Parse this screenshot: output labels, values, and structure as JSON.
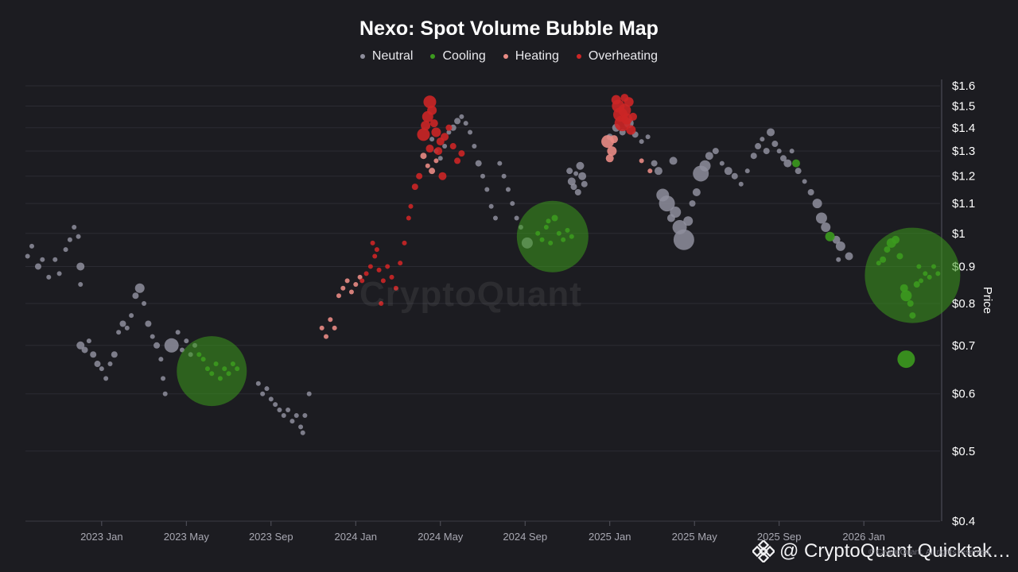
{
  "chart_data": {
    "type": "scatter",
    "title": "Nexo: Spot Volume Bubble Map",
    "y_scale": "log",
    "ylim": [
      0.4,
      1.6
    ],
    "y_ticks": [
      "$1.6",
      "$1.5",
      "$1.4",
      "$1.3",
      "$1.2",
      "$1.1",
      "$1",
      "$0.9",
      "$0.8",
      "$0.7",
      "$0.6",
      "$0.5",
      "$0.4"
    ],
    "y_tick_values": [
      1.6,
      1.5,
      1.4,
      1.3,
      1.2,
      1.1,
      1.0,
      0.9,
      0.8,
      0.7,
      0.6,
      0.5,
      0.4
    ],
    "ylabel": "Price",
    "x_ticks": [
      "2023 Jan",
      "2023 May",
      "2023 Sep",
      "2024 Jan",
      "2024 May",
      "2024 Sep",
      "2025 Jan",
      "2025 May",
      "2025 Sep",
      "2026 Jan"
    ],
    "x_tick_values": [
      0,
      4,
      8,
      12,
      16,
      20,
      24,
      28,
      32,
      36
    ],
    "xlim": [
      -3.6,
      39.6
    ],
    "legend": [
      {
        "name": "Neutral",
        "color": "#8e8e9c"
      },
      {
        "name": "Cooling",
        "color": "#3c9a1e"
      },
      {
        "name": "Heating",
        "color": "#e98b84"
      },
      {
        "name": "Overheating",
        "color": "#cc2626"
      }
    ],
    "series": [
      {
        "name": "Neutral",
        "points": [
          [
            -3.5,
            0.93,
            3
          ],
          [
            -3.3,
            0.96,
            3
          ],
          [
            -3.0,
            0.9,
            4
          ],
          [
            -2.8,
            0.92,
            3
          ],
          [
            -2.5,
            0.87,
            3
          ],
          [
            -2.2,
            0.92,
            3
          ],
          [
            -2.0,
            0.88,
            3
          ],
          [
            -1.7,
            0.95,
            3
          ],
          [
            -1.5,
            0.98,
            3
          ],
          [
            -1.3,
            1.02,
            3
          ],
          [
            -1.1,
            0.99,
            3
          ],
          [
            -1.0,
            0.9,
            5
          ],
          [
            -1.0,
            0.85,
            3
          ],
          [
            -1.0,
            0.7,
            5
          ],
          [
            -0.8,
            0.69,
            4
          ],
          [
            -0.6,
            0.71,
            3
          ],
          [
            -0.4,
            0.68,
            4
          ],
          [
            -0.2,
            0.66,
            4
          ],
          [
            0.0,
            0.65,
            3
          ],
          [
            0.2,
            0.63,
            3
          ],
          [
            0.4,
            0.66,
            3
          ],
          [
            0.6,
            0.68,
            4
          ],
          [
            0.8,
            0.73,
            3
          ],
          [
            1.0,
            0.75,
            4
          ],
          [
            1.2,
            0.74,
            3
          ],
          [
            1.4,
            0.77,
            3
          ],
          [
            1.6,
            0.82,
            4
          ],
          [
            1.8,
            0.84,
            6
          ],
          [
            2.0,
            0.8,
            3
          ],
          [
            2.2,
            0.75,
            4
          ],
          [
            2.4,
            0.72,
            3
          ],
          [
            2.6,
            0.7,
            4
          ],
          [
            2.8,
            0.67,
            3
          ],
          [
            2.9,
            0.63,
            3
          ],
          [
            3.0,
            0.6,
            3
          ],
          [
            3.3,
            0.7,
            9
          ],
          [
            3.6,
            0.73,
            3
          ],
          [
            3.8,
            0.69,
            3
          ],
          [
            4.0,
            0.71,
            3
          ],
          [
            4.2,
            0.68,
            3
          ],
          [
            4.4,
            0.7,
            3
          ],
          [
            7.4,
            0.62,
            3
          ],
          [
            7.6,
            0.6,
            3
          ],
          [
            7.8,
            0.61,
            3
          ],
          [
            8.0,
            0.59,
            3
          ],
          [
            8.2,
            0.58,
            3
          ],
          [
            8.4,
            0.57,
            3
          ],
          [
            8.6,
            0.56,
            3
          ],
          [
            8.8,
            0.57,
            3
          ],
          [
            9.0,
            0.55,
            3
          ],
          [
            9.2,
            0.56,
            3
          ],
          [
            9.4,
            0.54,
            3
          ],
          [
            9.5,
            0.53,
            3
          ],
          [
            9.6,
            0.56,
            3
          ],
          [
            9.8,
            0.6,
            3
          ],
          [
            15.6,
            1.35,
            3
          ],
          [
            15.8,
            1.3,
            3
          ],
          [
            16.0,
            1.27,
            3
          ],
          [
            16.2,
            1.32,
            3
          ],
          [
            16.4,
            1.38,
            3
          ],
          [
            16.6,
            1.4,
            4
          ],
          [
            16.8,
            1.43,
            4
          ],
          [
            17.0,
            1.45,
            3
          ],
          [
            17.2,
            1.42,
            3
          ],
          [
            17.4,
            1.38,
            3
          ],
          [
            17.6,
            1.32,
            3
          ],
          [
            17.8,
            1.25,
            4
          ],
          [
            18.0,
            1.2,
            3
          ],
          [
            18.2,
            1.15,
            3
          ],
          [
            18.4,
            1.09,
            3
          ],
          [
            18.6,
            1.05,
            3
          ],
          [
            18.8,
            1.25,
            3
          ],
          [
            19.0,
            1.2,
            3
          ],
          [
            19.2,
            1.15,
            3
          ],
          [
            19.4,
            1.1,
            3
          ],
          [
            19.6,
            1.05,
            3
          ],
          [
            19.8,
            1.02,
            3
          ],
          [
            20.1,
            0.97,
            7
          ],
          [
            22.1,
            1.22,
            4
          ],
          [
            22.2,
            1.18,
            5
          ],
          [
            22.3,
            1.16,
            4
          ],
          [
            22.4,
            1.21,
            3
          ],
          [
            22.5,
            1.14,
            4
          ],
          [
            22.6,
            1.24,
            5
          ],
          [
            22.7,
            1.2,
            5
          ],
          [
            22.8,
            1.17,
            4
          ],
          [
            24.0,
            1.36,
            4
          ],
          [
            24.3,
            1.4,
            5
          ],
          [
            24.6,
            1.38,
            4
          ],
          [
            24.9,
            1.42,
            6
          ],
          [
            25.2,
            1.37,
            4
          ],
          [
            25.5,
            1.34,
            3
          ],
          [
            25.8,
            1.36,
            3
          ],
          [
            26.1,
            1.25,
            4
          ],
          [
            26.3,
            1.22,
            5
          ],
          [
            26.5,
            1.13,
            8
          ],
          [
            26.7,
            1.1,
            10
          ],
          [
            26.9,
            1.05,
            5
          ],
          [
            27.1,
            1.07,
            7
          ],
          [
            27.3,
            1.02,
            9
          ],
          [
            27.5,
            0.98,
            13
          ],
          [
            27.7,
            1.04,
            6
          ],
          [
            27.9,
            1.1,
            4
          ],
          [
            28.1,
            1.14,
            5
          ],
          [
            28.3,
            1.21,
            10
          ],
          [
            28.5,
            1.24,
            7
          ],
          [
            28.7,
            1.28,
            5
          ],
          [
            29.0,
            1.3,
            4
          ],
          [
            29.3,
            1.25,
            3
          ],
          [
            29.6,
            1.22,
            5
          ],
          [
            29.9,
            1.2,
            4
          ],
          [
            30.2,
            1.17,
            3
          ],
          [
            30.5,
            1.22,
            3
          ],
          [
            30.8,
            1.28,
            4
          ],
          [
            31.0,
            1.32,
            4
          ],
          [
            31.2,
            1.35,
            3
          ],
          [
            31.4,
            1.3,
            4
          ],
          [
            31.6,
            1.38,
            5
          ],
          [
            31.8,
            1.33,
            4
          ],
          [
            32.0,
            1.3,
            3
          ],
          [
            32.2,
            1.27,
            4
          ],
          [
            32.4,
            1.25,
            5
          ],
          [
            32.6,
            1.3,
            3
          ],
          [
            32.9,
            1.22,
            4
          ],
          [
            33.2,
            1.18,
            3
          ],
          [
            33.5,
            1.14,
            4
          ],
          [
            33.8,
            1.1,
            6
          ],
          [
            34.0,
            1.05,
            7
          ],
          [
            34.2,
            1.02,
            6
          ],
          [
            34.7,
            0.98,
            5
          ],
          [
            34.9,
            0.96,
            6
          ],
          [
            34.8,
            0.92,
            3
          ],
          [
            35.3,
            0.93,
            5
          ],
          [
            27.0,
            1.26,
            5
          ]
        ]
      },
      {
        "name": "Cooling",
        "points": [
          [
            5.2,
            0.645,
            44
          ],
          [
            4.6,
            0.68,
            3
          ],
          [
            4.8,
            0.67,
            3
          ],
          [
            5.0,
            0.65,
            3
          ],
          [
            5.2,
            0.64,
            3
          ],
          [
            5.4,
            0.66,
            3
          ],
          [
            5.6,
            0.63,
            3
          ],
          [
            5.8,
            0.65,
            3
          ],
          [
            6.0,
            0.64,
            3
          ],
          [
            6.2,
            0.66,
            3
          ],
          [
            6.4,
            0.65,
            3
          ],
          [
            21.3,
            0.99,
            45
          ],
          [
            20.6,
            1.0,
            3
          ],
          [
            20.8,
            0.98,
            3
          ],
          [
            21.0,
            1.02,
            3
          ],
          [
            21.2,
            0.97,
            3
          ],
          [
            21.4,
            1.05,
            4
          ],
          [
            21.6,
            1.0,
            3
          ],
          [
            21.8,
            0.98,
            3
          ],
          [
            22.0,
            1.01,
            3
          ],
          [
            22.2,
            0.99,
            3
          ],
          [
            21.1,
            1.04,
            3
          ],
          [
            38.3,
            0.875,
            60
          ],
          [
            36.7,
            0.91,
            3
          ],
          [
            36.9,
            0.92,
            4
          ],
          [
            37.1,
            0.95,
            4
          ],
          [
            37.3,
            0.97,
            6
          ],
          [
            37.5,
            0.98,
            5
          ],
          [
            37.7,
            0.93,
            4
          ],
          [
            37.9,
            0.84,
            5
          ],
          [
            38.0,
            0.82,
            7
          ],
          [
            38.2,
            0.8,
            4
          ],
          [
            38.3,
            0.77,
            4
          ],
          [
            38.5,
            0.85,
            4
          ],
          [
            38.7,
            0.86,
            3
          ],
          [
            38.9,
            0.88,
            3
          ],
          [
            39.1,
            0.87,
            3
          ],
          [
            39.3,
            0.9,
            3
          ],
          [
            39.5,
            0.88,
            3
          ],
          [
            38.6,
            0.9,
            3
          ],
          [
            34.4,
            0.99,
            6
          ],
          [
            32.8,
            1.25,
            5
          ],
          [
            38.0,
            0.67,
            11
          ]
        ]
      },
      {
        "name": "Heating",
        "points": [
          [
            10.4,
            0.74,
            3
          ],
          [
            10.6,
            0.72,
            3
          ],
          [
            10.8,
            0.76,
            3
          ],
          [
            11.0,
            0.74,
            3
          ],
          [
            11.2,
            0.82,
            3
          ],
          [
            11.4,
            0.84,
            3
          ],
          [
            11.6,
            0.86,
            3
          ],
          [
            11.8,
            0.83,
            3
          ],
          [
            12.0,
            0.85,
            3
          ],
          [
            12.2,
            0.87,
            3
          ],
          [
            15.2,
            1.28,
            4
          ],
          [
            15.4,
            1.24,
            3
          ],
          [
            15.6,
            1.22,
            4
          ],
          [
            15.8,
            1.26,
            3
          ],
          [
            24.1,
            1.3,
            6
          ],
          [
            24.0,
            1.27,
            5
          ],
          [
            23.9,
            1.34,
            8
          ],
          [
            24.2,
            1.35,
            5
          ],
          [
            25.5,
            1.26,
            3
          ],
          [
            25.9,
            1.22,
            3
          ]
        ]
      },
      {
        "name": "Overheating",
        "points": [
          [
            12.3,
            0.86,
            3
          ],
          [
            12.5,
            0.88,
            3
          ],
          [
            12.7,
            0.9,
            3
          ],
          [
            12.9,
            0.93,
            3
          ],
          [
            13.1,
            0.89,
            3
          ],
          [
            13.3,
            0.86,
            3
          ],
          [
            13.5,
            0.9,
            3
          ],
          [
            13.7,
            0.87,
            3
          ],
          [
            13.9,
            0.84,
            3
          ],
          [
            13.2,
            0.8,
            3
          ],
          [
            14.1,
            0.91,
            3
          ],
          [
            14.3,
            0.97,
            3
          ],
          [
            14.5,
            1.05,
            3
          ],
          [
            14.6,
            1.09,
            3
          ],
          [
            14.8,
            1.16,
            4
          ],
          [
            15.0,
            1.2,
            4
          ],
          [
            12.8,
            0.97,
            3
          ],
          [
            13.0,
            0.95,
            3
          ],
          [
            15.2,
            1.37,
            8
          ],
          [
            15.3,
            1.41,
            6
          ],
          [
            15.4,
            1.45,
            7
          ],
          [
            15.5,
            1.52,
            8
          ],
          [
            15.6,
            1.48,
            6
          ],
          [
            15.7,
            1.42,
            5
          ],
          [
            15.8,
            1.38,
            6
          ],
          [
            15.9,
            1.3,
            5
          ],
          [
            16.0,
            1.34,
            5
          ],
          [
            16.2,
            1.36,
            5
          ],
          [
            16.4,
            1.4,
            4
          ],
          [
            16.6,
            1.32,
            4
          ],
          [
            16.8,
            1.26,
            4
          ],
          [
            17.0,
            1.29,
            4
          ],
          [
            15.5,
            1.31,
            5
          ],
          [
            16.1,
            1.2,
            5
          ],
          [
            24.4,
            1.5,
            8
          ],
          [
            24.5,
            1.46,
            9
          ],
          [
            24.6,
            1.42,
            10
          ],
          [
            24.7,
            1.48,
            8
          ],
          [
            24.8,
            1.44,
            7
          ],
          [
            24.9,
            1.52,
            6
          ],
          [
            25.0,
            1.39,
            6
          ],
          [
            25.1,
            1.45,
            5
          ],
          [
            24.3,
            1.53,
            6
          ],
          [
            24.7,
            1.54,
            5
          ]
        ]
      }
    ]
  },
  "watermark": "CryptoQuant",
  "credit": {
    "handle": "@ CryptoQuant Quicktak…",
    "sub": "© CryptoQuant. All rights reserved."
  }
}
